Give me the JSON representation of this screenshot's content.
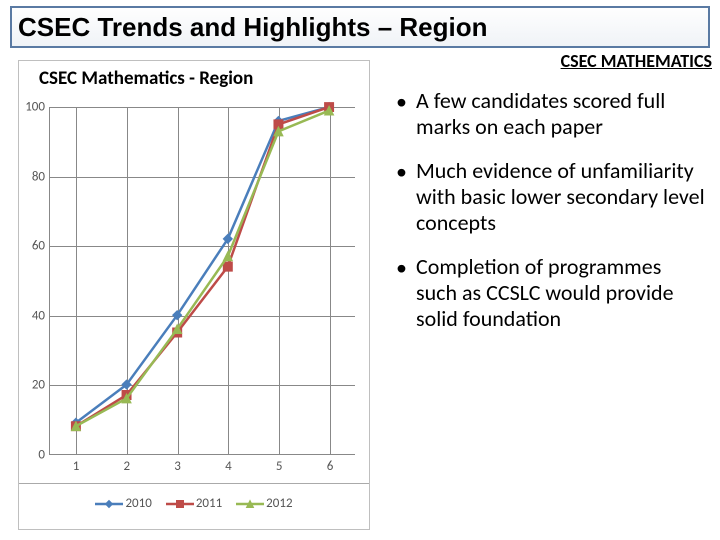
{
  "title": "CSEC Trends and Highlights – Region",
  "title_fontsize": 26,
  "subhead": "CSEC MATHEMATICS",
  "subhead_fontsize": 18,
  "bullets": {
    "fontsize": 22,
    "items": [
      "A few candidates scored full marks on each paper",
      "Much evidence of unfamiliarity with basic lower secondary level concepts",
      "Completion of programmes such as CCSLC would provide solid foundation"
    ]
  },
  "chart": {
    "title": "CSEC Mathematics - Region",
    "title_fontsize": 19,
    "type": "line",
    "border_color": "#bfbfbf",
    "background_color": "#ffffff",
    "axis_color": "#888888",
    "grid_color": "#888888",
    "tick_label_color": "#595959",
    "tick_fontsize": 13,
    "xlim": [
      1,
      6
    ],
    "ylim": [
      0,
      100
    ],
    "x_ticks": [
      1,
      2,
      3,
      4,
      5,
      6
    ],
    "y_ticks": [
      0,
      20,
      40,
      60,
      80,
      100
    ],
    "line_width": 2.5,
    "marker_size": 7,
    "series": [
      {
        "name": "2010",
        "color": "#4a7ebb",
        "marker": "diamond",
        "y": [
          9,
          20,
          40,
          62,
          96,
          100
        ]
      },
      {
        "name": "2011",
        "color": "#be4b48",
        "marker": "square",
        "y": [
          8,
          17,
          35,
          54,
          95,
          100
        ]
      },
      {
        "name": "2012",
        "color": "#98b954",
        "marker": "triangle",
        "y": [
          8,
          16,
          36,
          57,
          93,
          99
        ]
      }
    ]
  }
}
